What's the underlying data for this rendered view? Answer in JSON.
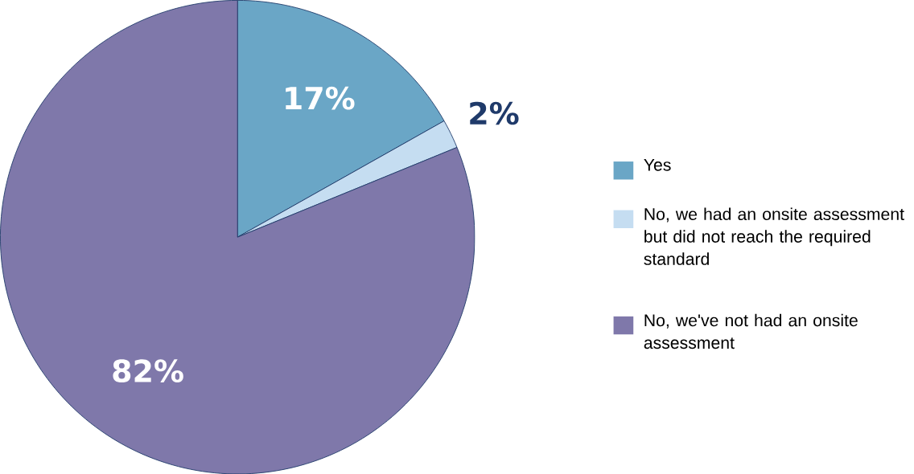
{
  "chart_data": {
    "type": "pie",
    "categories": [
      "Yes",
      "No, we had an onsite assessment but did not reach the required standard",
      "No, we've not had an onsite assessment"
    ],
    "values": [
      17,
      2,
      82
    ],
    "value_labels": [
      "17%",
      "2%",
      "82%"
    ],
    "colors": [
      "#6aa6c6",
      "#c5ddf1",
      "#7f78aa"
    ],
    "legend": "right"
  }
}
